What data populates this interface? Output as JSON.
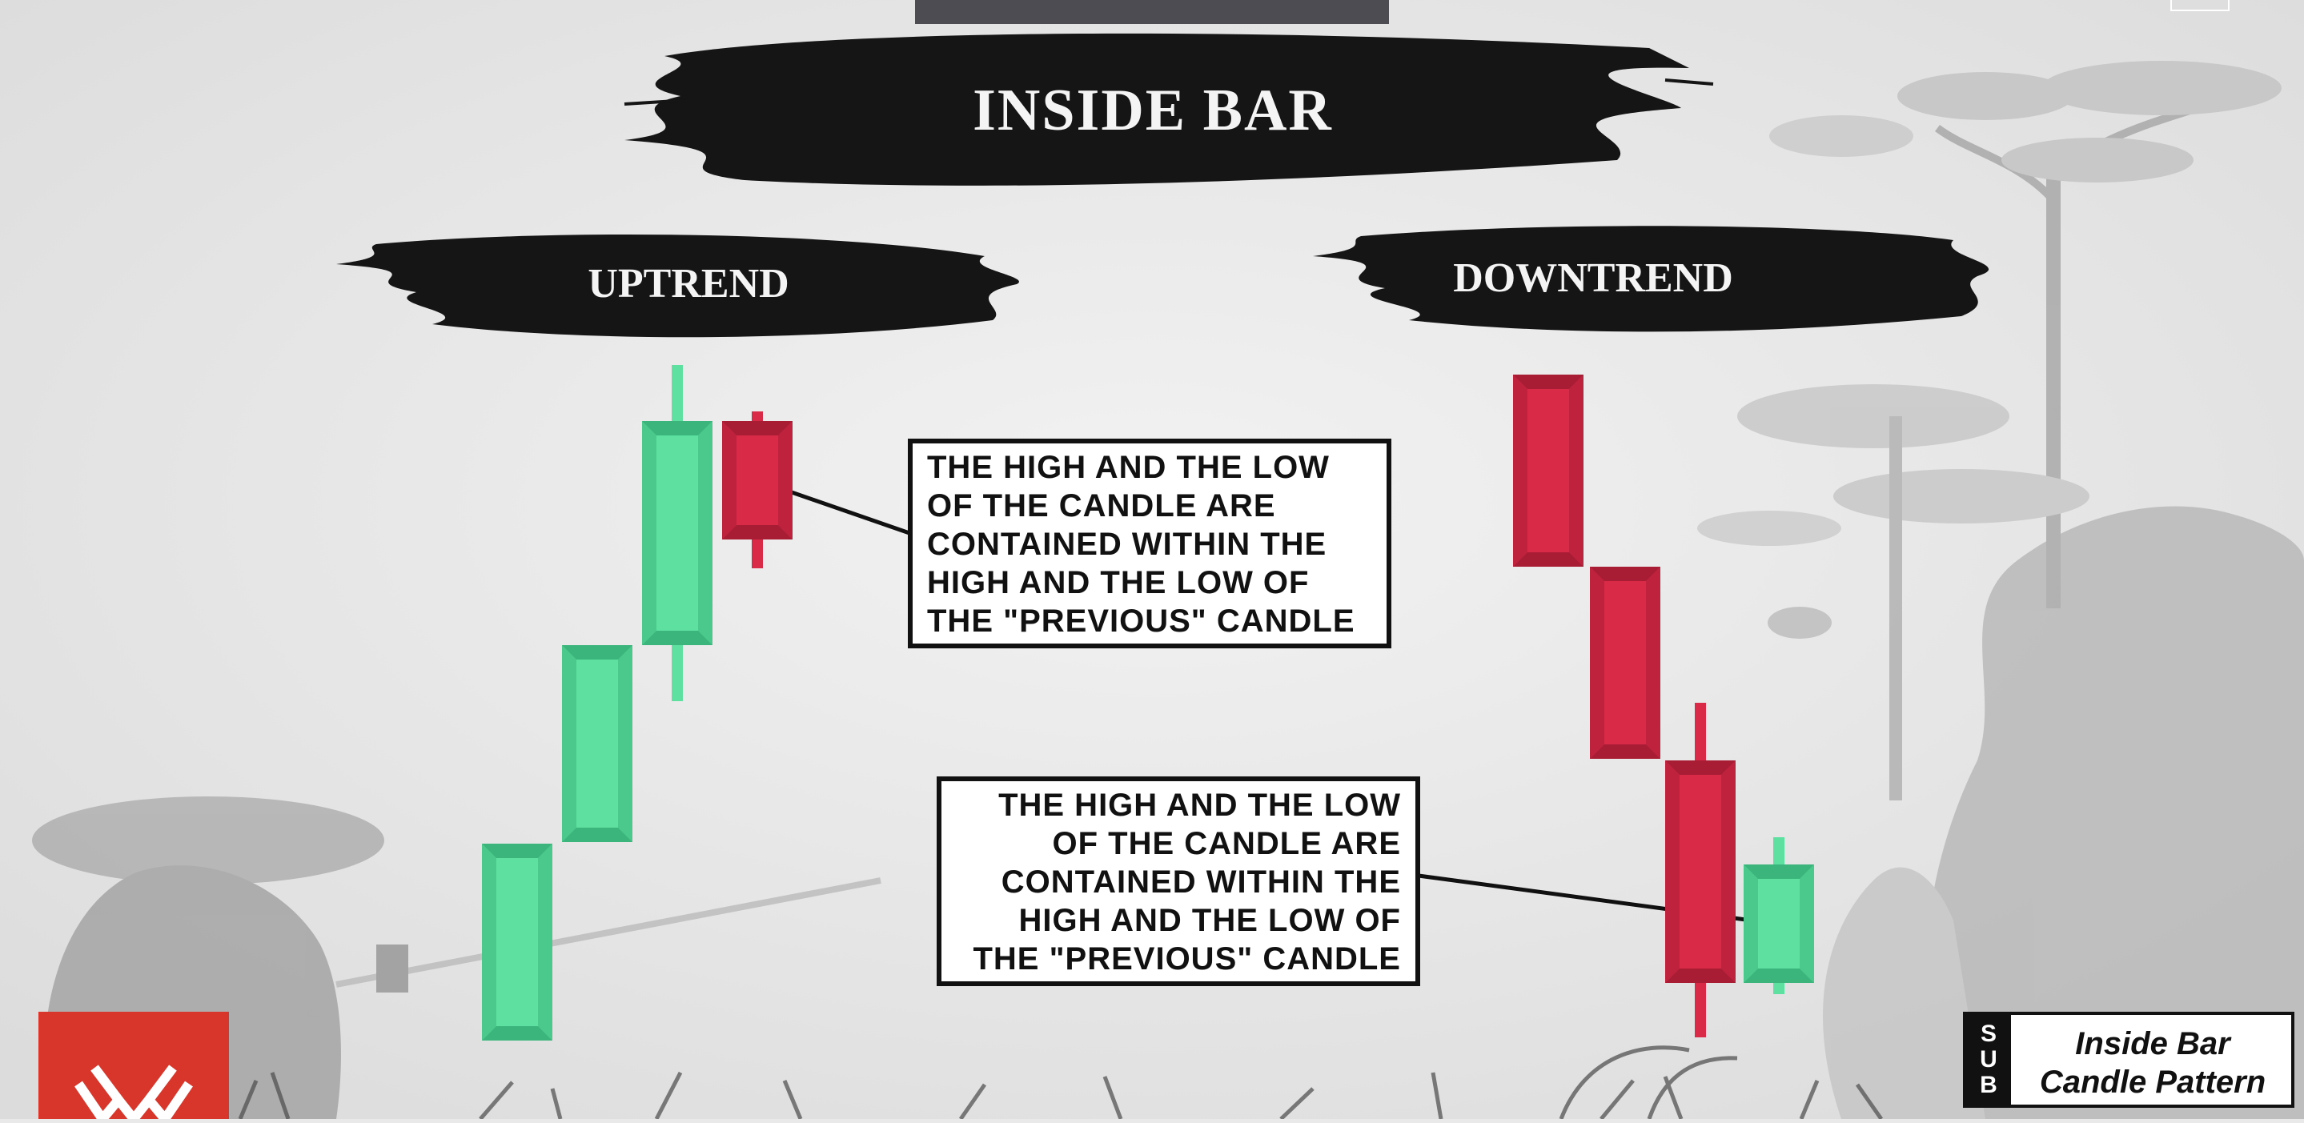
{
  "title": "INSIDE BAR",
  "sections": {
    "uptrend": "UPTREND",
    "downtrend": "DOWNTREND"
  },
  "callouts": {
    "left": [
      "THE HIGH AND THE LOW",
      "OF THE CANDLE ARE",
      "CONTAINED WITHIN THE",
      "HIGH AND THE LOW OF",
      "THE \"PREVIOUS\" CANDLE"
    ],
    "right": [
      "THE HIGH AND THE LOW",
      "OF THE CANDLE ARE",
      "CONTAINED WITHIN THE",
      "HIGH AND THE LOW OF",
      "THE \"PREVIOUS\" CANDLE"
    ]
  },
  "badge": {
    "letters": [
      "S",
      "U",
      "B"
    ],
    "title_line1": "Inside Bar",
    "title_line2": "Candle Pattern"
  },
  "colors": {
    "bullish": "#5ee0a0",
    "bullish_dark": "#3cb57c",
    "bearish": "#d92b48",
    "bearish_dark": "#a81c34",
    "ink": "#111111",
    "logo": "#d8352b"
  },
  "diagram": {
    "uptrend_candles": [
      {
        "direction": "bullish",
        "role": "trend"
      },
      {
        "direction": "bullish",
        "role": "trend"
      },
      {
        "direction": "bullish",
        "role": "mother"
      },
      {
        "direction": "bearish",
        "role": "inside"
      }
    ],
    "downtrend_candles": [
      {
        "direction": "bearish",
        "role": "trend"
      },
      {
        "direction": "bearish",
        "role": "trend"
      },
      {
        "direction": "bearish",
        "role": "mother"
      },
      {
        "direction": "bullish",
        "role": "inside"
      }
    ]
  }
}
